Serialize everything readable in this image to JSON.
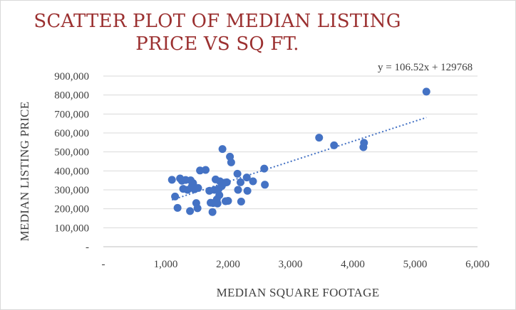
{
  "chart_data": {
    "type": "scatter",
    "title": "SCATTER PLOT OF MEDIAN LISTING PRICE VS SQ FT.",
    "xlabel": "MEDIAN SQUARE FOOTAGE",
    "ylabel": "MEDIAN LISTING PRICE",
    "xlim": [
      0,
      6000
    ],
    "ylim": [
      0,
      900000
    ],
    "x_ticks": [
      "-",
      "1,000",
      "2,000",
      "3,000",
      "4,000",
      "5,000",
      "6,000"
    ],
    "y_ticks": [
      "-",
      "100,000",
      "200,000",
      "300,000",
      "400,000",
      "500,000",
      "600,000",
      "700,000",
      "800,000",
      "900,000"
    ],
    "grid": "horizontal",
    "marker_color": "#4472c4",
    "trendline": {
      "type": "linear",
      "slope": 106.52,
      "intercept": 129768,
      "label": "y = 106.52x + 129768",
      "x_range": [
        1100,
        5180
      ],
      "color": "#4472c4"
    },
    "points": [
      [
        1100,
        353000
      ],
      [
        1150,
        265000
      ],
      [
        1190,
        205000
      ],
      [
        1230,
        360000
      ],
      [
        1260,
        348000
      ],
      [
        1280,
        305000
      ],
      [
        1320,
        352000
      ],
      [
        1350,
        300000
      ],
      [
        1390,
        188000
      ],
      [
        1400,
        350000
      ],
      [
        1420,
        318000
      ],
      [
        1440,
        335000
      ],
      [
        1460,
        303000
      ],
      [
        1490,
        230000
      ],
      [
        1510,
        203000
      ],
      [
        1520,
        310000
      ],
      [
        1550,
        402000
      ],
      [
        1640,
        405000
      ],
      [
        1700,
        295000
      ],
      [
        1720,
        232000
      ],
      [
        1750,
        183000
      ],
      [
        1760,
        230000
      ],
      [
        1780,
        300000
      ],
      [
        1800,
        355000
      ],
      [
        1820,
        250000
      ],
      [
        1830,
        228000
      ],
      [
        1850,
        305000
      ],
      [
        1860,
        272000
      ],
      [
        1870,
        345000
      ],
      [
        1900,
        320000
      ],
      [
        1910,
        515000
      ],
      [
        1950,
        338000
      ],
      [
        1960,
        240000
      ],
      [
        1980,
        340000
      ],
      [
        2000,
        242000
      ],
      [
        2030,
        475000
      ],
      [
        2050,
        445000
      ],
      [
        2150,
        385000
      ],
      [
        2160,
        300000
      ],
      [
        2200,
        340000
      ],
      [
        2210,
        238000
      ],
      [
        2300,
        365000
      ],
      [
        2310,
        295000
      ],
      [
        2400,
        345000
      ],
      [
        2580,
        412000
      ],
      [
        2590,
        327000
      ],
      [
        3460,
        575000
      ],
      [
        3700,
        535000
      ],
      [
        4170,
        525000
      ],
      [
        4180,
        548000
      ],
      [
        5180,
        818000
      ]
    ]
  }
}
